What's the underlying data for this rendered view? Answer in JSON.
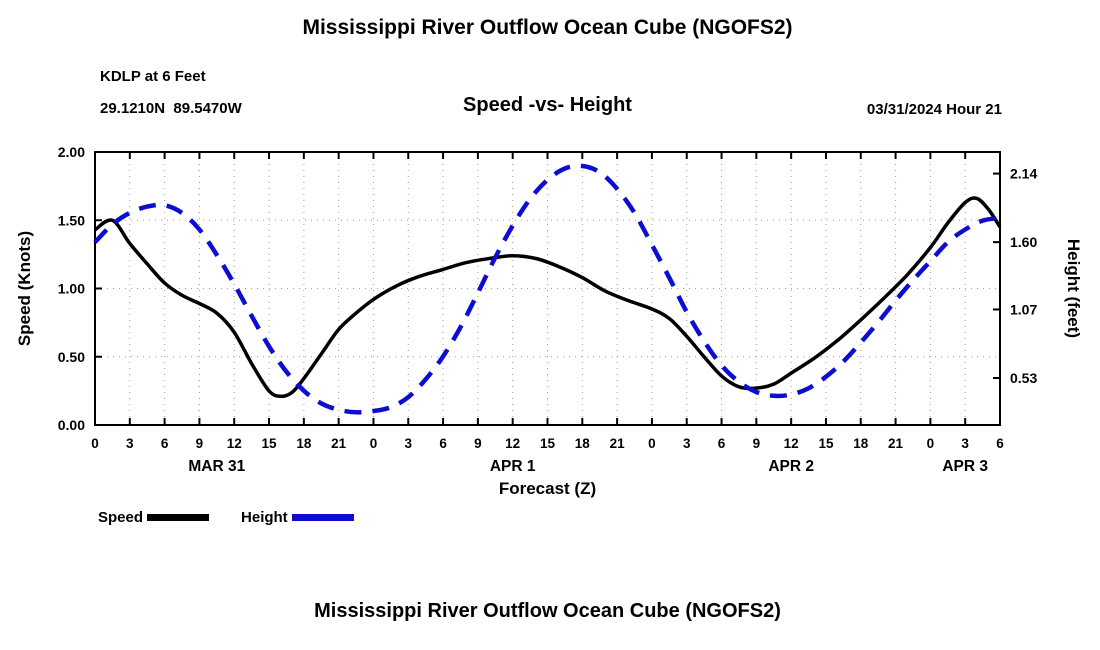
{
  "page": {
    "top_title": "Mississippi River Outflow Ocean Cube (NGOFS2)",
    "bottom_title": "Mississippi River Outflow Ocean Cube (NGOFS2)",
    "station_line1": "KDLP at 6 Feet",
    "station_line2": "29.1210N  89.5470W",
    "plot_title": "Speed -vs- Height",
    "timestamp": "03/31/2024 Hour 21"
  },
  "chart_data": {
    "type": "line",
    "title": "Speed -vs- Height",
    "xlabel": "Forecast (Z)",
    "ylabel_left": "Speed (Knots)",
    "ylabel_right": "Height (feet)",
    "x_range": [
      0,
      78
    ],
    "x_tick_interval": 3,
    "x_tick_labels": [
      "0",
      "3",
      "6",
      "9",
      "12",
      "15",
      "18",
      "21",
      "0",
      "3",
      "6",
      "9",
      "12",
      "15",
      "18",
      "21",
      "0",
      "3",
      "6",
      "9",
      "12",
      "15",
      "18",
      "21",
      "0",
      "3",
      "6"
    ],
    "day_labels": [
      {
        "label": "MAR 31",
        "hour": 10.5
      },
      {
        "label": "APR 1",
        "hour": 36
      },
      {
        "label": "APR 2",
        "hour": 60
      },
      {
        "label": "APR 3",
        "hour": 75
      }
    ],
    "y_left": {
      "min": 0,
      "max": 2,
      "ticks": [
        "0.00",
        "0.50",
        "1.00",
        "1.50",
        "2.00"
      ],
      "grid_values": [
        0.5,
        1.0,
        1.5
      ]
    },
    "y_right": {
      "min": 0.16,
      "max": 2.31,
      "ticks": [
        "0.53",
        "1.07",
        "1.60",
        "2.14"
      ]
    },
    "grid": "dotted",
    "legend_position": "below-left",
    "series": [
      {
        "name": "Speed",
        "axis": "left",
        "color": "#000000",
        "style": "solid",
        "width": 3.5,
        "points": [
          [
            0,
            1.43
          ],
          [
            1.5,
            1.5
          ],
          [
            3,
            1.33
          ],
          [
            4.5,
            1.18
          ],
          [
            6,
            1.04
          ],
          [
            7.5,
            0.95
          ],
          [
            9,
            0.89
          ],
          [
            10.5,
            0.82
          ],
          [
            12,
            0.68
          ],
          [
            13.5,
            0.45
          ],
          [
            15,
            0.25
          ],
          [
            16,
            0.21
          ],
          [
            17,
            0.24
          ],
          [
            18,
            0.34
          ],
          [
            19.5,
            0.52
          ],
          [
            21,
            0.7
          ],
          [
            22.5,
            0.82
          ],
          [
            24,
            0.92
          ],
          [
            26,
            1.02
          ],
          [
            28,
            1.09
          ],
          [
            30,
            1.14
          ],
          [
            32,
            1.19
          ],
          [
            34,
            1.22
          ],
          [
            36,
            1.24
          ],
          [
            38,
            1.22
          ],
          [
            40,
            1.16
          ],
          [
            42,
            1.08
          ],
          [
            44,
            0.98
          ],
          [
            46,
            0.91
          ],
          [
            48,
            0.85
          ],
          [
            49.5,
            0.78
          ],
          [
            51,
            0.65
          ],
          [
            52.5,
            0.5
          ],
          [
            54,
            0.36
          ],
          [
            55.5,
            0.28
          ],
          [
            57,
            0.27
          ],
          [
            58.5,
            0.3
          ],
          [
            60,
            0.38
          ],
          [
            62,
            0.49
          ],
          [
            64,
            0.62
          ],
          [
            66,
            0.77
          ],
          [
            68,
            0.93
          ],
          [
            70,
            1.1
          ],
          [
            72,
            1.3
          ],
          [
            73.5,
            1.48
          ],
          [
            75,
            1.63
          ],
          [
            76,
            1.66
          ],
          [
            77,
            1.58
          ],
          [
            78,
            1.45
          ]
        ]
      },
      {
        "name": "Height",
        "axis": "right",
        "color": "#0d0dd2",
        "style": "dashed",
        "width": 4.5,
        "dash": "17 11",
        "points": [
          [
            0,
            1.6
          ],
          [
            1.5,
            1.74
          ],
          [
            3,
            1.83
          ],
          [
            4.5,
            1.88
          ],
          [
            6,
            1.89
          ],
          [
            7.5,
            1.83
          ],
          [
            9,
            1.7
          ],
          [
            10.5,
            1.5
          ],
          [
            12,
            1.27
          ],
          [
            13.5,
            1.02
          ],
          [
            15,
            0.78
          ],
          [
            16.5,
            0.58
          ],
          [
            18,
            0.43
          ],
          [
            19.5,
            0.33
          ],
          [
            21,
            0.28
          ],
          [
            22.5,
            0.26
          ],
          [
            24,
            0.27
          ],
          [
            25.5,
            0.3
          ],
          [
            27,
            0.38
          ],
          [
            28.5,
            0.52
          ],
          [
            30,
            0.7
          ],
          [
            31.5,
            0.93
          ],
          [
            33,
            1.2
          ],
          [
            34.5,
            1.48
          ],
          [
            36,
            1.73
          ],
          [
            37.5,
            1.94
          ],
          [
            39,
            2.09
          ],
          [
            40.5,
            2.18
          ],
          [
            42,
            2.2
          ],
          [
            43.5,
            2.15
          ],
          [
            45,
            2.02
          ],
          [
            46.5,
            1.83
          ],
          [
            48,
            1.58
          ],
          [
            49.5,
            1.32
          ],
          [
            51,
            1.05
          ],
          [
            52.5,
            0.82
          ],
          [
            54,
            0.63
          ],
          [
            55.5,
            0.5
          ],
          [
            57,
            0.42
          ],
          [
            58.5,
            0.39
          ],
          [
            60,
            0.4
          ],
          [
            61.5,
            0.45
          ],
          [
            63,
            0.54
          ],
          [
            64.5,
            0.66
          ],
          [
            66,
            0.81
          ],
          [
            67.5,
            0.97
          ],
          [
            69,
            1.14
          ],
          [
            70.5,
            1.3
          ],
          [
            72,
            1.45
          ],
          [
            73.5,
            1.6
          ],
          [
            75,
            1.7
          ],
          [
            76.5,
            1.77
          ],
          [
            78,
            1.79
          ]
        ]
      }
    ],
    "legend": [
      {
        "label": "Speed",
        "color": "#000000"
      },
      {
        "label": "Height",
        "color": "#0d0dd2"
      }
    ]
  }
}
